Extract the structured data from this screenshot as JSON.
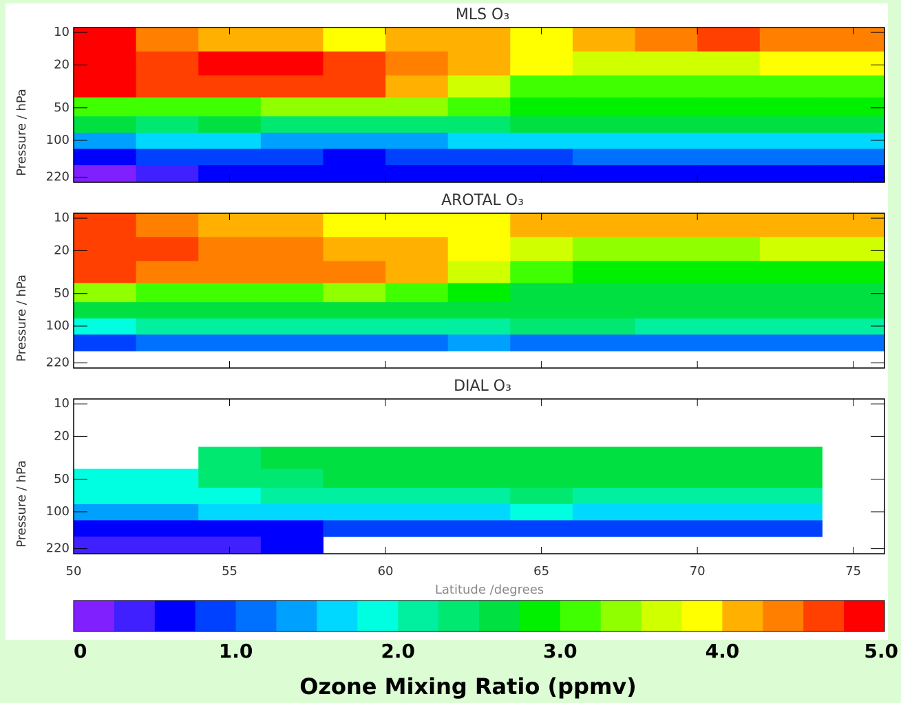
{
  "chart_data": [
    {
      "type": "heatmap",
      "title": "MLS O₃",
      "ylabel": "Pressure / hPa",
      "log_y": true,
      "y_inverted": true,
      "xlim": [
        50,
        76
      ],
      "xticks": [
        50,
        55,
        60,
        65,
        70,
        75
      ],
      "ylim": [
        9,
        245
      ],
      "yticks": [
        10,
        20,
        50,
        100,
        220
      ],
      "x_bins": [
        50,
        52,
        54,
        56,
        58,
        60,
        62,
        64,
        66,
        68,
        70,
        72,
        74,
        76
      ],
      "y_bins": [
        9,
        15,
        25,
        40,
        60,
        85,
        120,
        170,
        245
      ],
      "z": [
        [
          4.8,
          4.4,
          4.2,
          4.1,
          3.9,
          4.2,
          4.1,
          3.9,
          4.1,
          4.4,
          4.5,
          4.4,
          4.3
        ],
        [
          4.8,
          4.6,
          4.8,
          4.8,
          4.7,
          4.4,
          4.2,
          3.8,
          3.6,
          3.6,
          3.7,
          3.8,
          3.9
        ],
        [
          4.9,
          4.5,
          4.5,
          4.6,
          4.7,
          4.2,
          3.6,
          3.1,
          3.0,
          3.0,
          3.0,
          3.1,
          3.2
        ],
        [
          3.2,
          3.2,
          3.2,
          3.4,
          3.4,
          3.4,
          3.2,
          2.9,
          2.8,
          2.8,
          2.8,
          2.8,
          2.8
        ],
        [
          2.6,
          2.3,
          2.5,
          2.4,
          2.3,
          2.3,
          2.4,
          2.5,
          2.5,
          2.5,
          2.5,
          2.5,
          2.5
        ],
        [
          1.4,
          1.5,
          1.6,
          1.4,
          1.3,
          1.3,
          1.5,
          1.6,
          1.7,
          1.7,
          1.7,
          1.7,
          1.7
        ],
        [
          0.6,
          0.8,
          0.9,
          0.8,
          0.7,
          0.8,
          0.9,
          0.9,
          1.0,
          1.0,
          1.0,
          1.0,
          1.0
        ],
        [
          0.2,
          0.3,
          0.5,
          0.5,
          0.5,
          0.6,
          0.6,
          0.6,
          0.6,
          0.6,
          0.6,
          0.6,
          0.6
        ]
      ]
    },
    {
      "type": "heatmap",
      "title": "AROTAL O₃",
      "ylabel": "Pressure / hPa",
      "log_y": true,
      "y_inverted": true,
      "xlim": [
        50,
        76
      ],
      "xticks": [
        50,
        55,
        60,
        65,
        70,
        75
      ],
      "ylim": [
        9,
        245
      ],
      "yticks": [
        10,
        20,
        50,
        100,
        220
      ],
      "x_bins": [
        50,
        52,
        54,
        56,
        58,
        60,
        62,
        64,
        66,
        68,
        70,
        72,
        74,
        76
      ],
      "y_bins": [
        9,
        15,
        25,
        40,
        60,
        85,
        120,
        170,
        245
      ],
      "z": [
        [
          4.6,
          4.3,
          4.2,
          4.0,
          3.9,
          3.9,
          3.9,
          4.0,
          4.0,
          4.1,
          4.2,
          4.1,
          4.1
        ],
        [
          4.7,
          4.5,
          4.4,
          4.3,
          4.2,
          4.1,
          3.9,
          3.6,
          3.4,
          3.3,
          3.4,
          3.5,
          3.5
        ],
        [
          4.5,
          4.4,
          4.3,
          4.3,
          4.3,
          4.1,
          3.6,
          3.1,
          2.9,
          2.8,
          2.8,
          2.9,
          2.9
        ],
        [
          3.3,
          3.1,
          3.0,
          3.2,
          3.3,
          3.1,
          2.8,
          2.7,
          2.7,
          2.6,
          2.7,
          2.7,
          2.7
        ],
        [
          2.6,
          2.6,
          2.6,
          2.5,
          2.5,
          2.6,
          2.6,
          2.7,
          2.6,
          2.6,
          2.6,
          2.6,
          2.6
        ],
        [
          1.9,
          2.0,
          2.1,
          2.1,
          2.0,
          2.1,
          2.2,
          2.3,
          2.3,
          2.2,
          2.2,
          2.2,
          2.2
        ],
        [
          0.9,
          1.0,
          1.1,
          1.1,
          1.1,
          1.2,
          1.3,
          1.2,
          1.2,
          1.1,
          1.2,
          1.1,
          1.1
        ],
        [
          null,
          null,
          null,
          null,
          null,
          null,
          null,
          null,
          null,
          null,
          null,
          null,
          null
        ]
      ]
    },
    {
      "type": "heatmap",
      "title": "DIAL O₃",
      "ylabel": "Pressure / hPa",
      "xlabel": "Latitude /degrees",
      "show_xtick_labels": true,
      "log_y": true,
      "y_inverted": true,
      "xlim": [
        50,
        76
      ],
      "xticks": [
        50,
        55,
        60,
        65,
        70,
        75
      ],
      "ylim": [
        9,
        245
      ],
      "yticks": [
        10,
        20,
        50,
        100,
        220
      ],
      "x_bins": [
        50,
        52,
        54,
        56,
        58,
        60,
        62,
        64,
        66,
        68,
        70,
        72,
        74,
        76
      ],
      "y_bins": [
        9,
        15,
        25,
        40,
        60,
        85,
        120,
        170,
        245
      ],
      "z": [
        [
          null,
          null,
          null,
          null,
          null,
          null,
          null,
          null,
          null,
          null,
          null,
          null,
          null
        ],
        [
          null,
          null,
          null,
          null,
          null,
          null,
          null,
          null,
          null,
          null,
          null,
          null,
          null
        ],
        [
          null,
          null,
          2.4,
          2.5,
          2.5,
          2.6,
          2.6,
          2.6,
          2.6,
          2.7,
          2.7,
          2.7,
          null
        ],
        [
          1.9,
          1.9,
          2.3,
          2.3,
          2.5,
          2.5,
          2.5,
          2.6,
          2.5,
          2.5,
          2.5,
          2.5,
          null
        ],
        [
          1.8,
          1.8,
          1.9,
          2.0,
          2.1,
          2.2,
          2.2,
          2.3,
          2.2,
          2.2,
          2.2,
          2.2,
          null
        ],
        [
          1.4,
          1.4,
          1.5,
          1.5,
          1.6,
          1.7,
          1.7,
          1.8,
          1.7,
          1.7,
          1.7,
          1.7,
          null
        ],
        [
          0.7,
          0.6,
          0.6,
          0.7,
          0.8,
          0.8,
          0.9,
          0.9,
          0.9,
          0.9,
          0.9,
          0.9,
          null
        ],
        [
          0.4,
          0.4,
          0.4,
          0.5,
          null,
          null,
          null,
          null,
          null,
          null,
          null,
          null,
          null
        ]
      ]
    },
    {
      "type": "colorbar",
      "title": "Ozone Mixing Ratio (ppmv)",
      "zlim": [
        0,
        5
      ],
      "ticks": [
        0,
        {
          "value": 1,
          "label": "1.0"
        },
        {
          "value": 2,
          "label": "2.0"
        },
        {
          "value": 3,
          "label": "3.0"
        },
        {
          "value": 4,
          "label": "4.0"
        },
        {
          "value": 5,
          "label": "5.0"
        }
      ],
      "colors": [
        "#8020ff",
        "#4020ff",
        "#0000ff",
        "#0040ff",
        "#0070ff",
        "#00a0ff",
        "#00d8ff",
        "#00ffe0",
        "#00f0a0",
        "#00e870",
        "#00e040",
        "#00f000",
        "#40ff00",
        "#90ff00",
        "#d0ff00",
        "#ffff00",
        "#ffb000",
        "#ff8000",
        "#ff4000",
        "#ff0000"
      ]
    }
  ]
}
